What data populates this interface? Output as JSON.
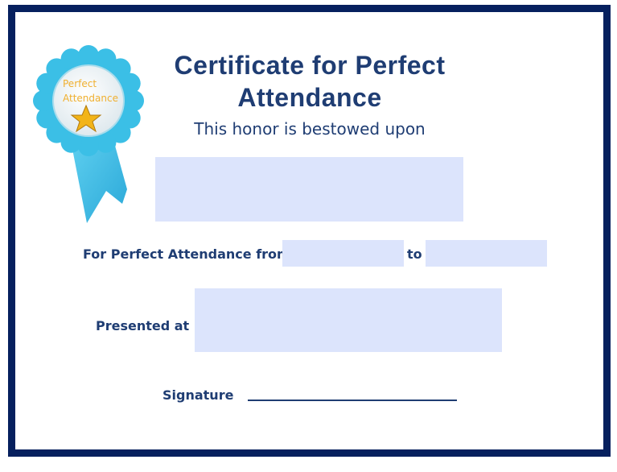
{
  "certificate": {
    "title_line1": "Certificate for Perfect",
    "title_line2": "Attendance",
    "subtitle": "This honor is bestowed upon",
    "recipient_name": "",
    "attendance_label": "For Perfect Attendance from",
    "from_date": "",
    "to_label": "to",
    "to_date": "",
    "presented_label": "Presented at",
    "presented_value": "",
    "signature_label": "Signature"
  },
  "badge": {
    "line1": "Perfect",
    "line2": "Attendance",
    "icon": "star-icon"
  },
  "colors": {
    "border": "#06205e",
    "text": "#1f3d73",
    "field_fill": "#dce4fc",
    "badge_blue": "#3bbfe6",
    "badge_text": "#f0b030"
  }
}
